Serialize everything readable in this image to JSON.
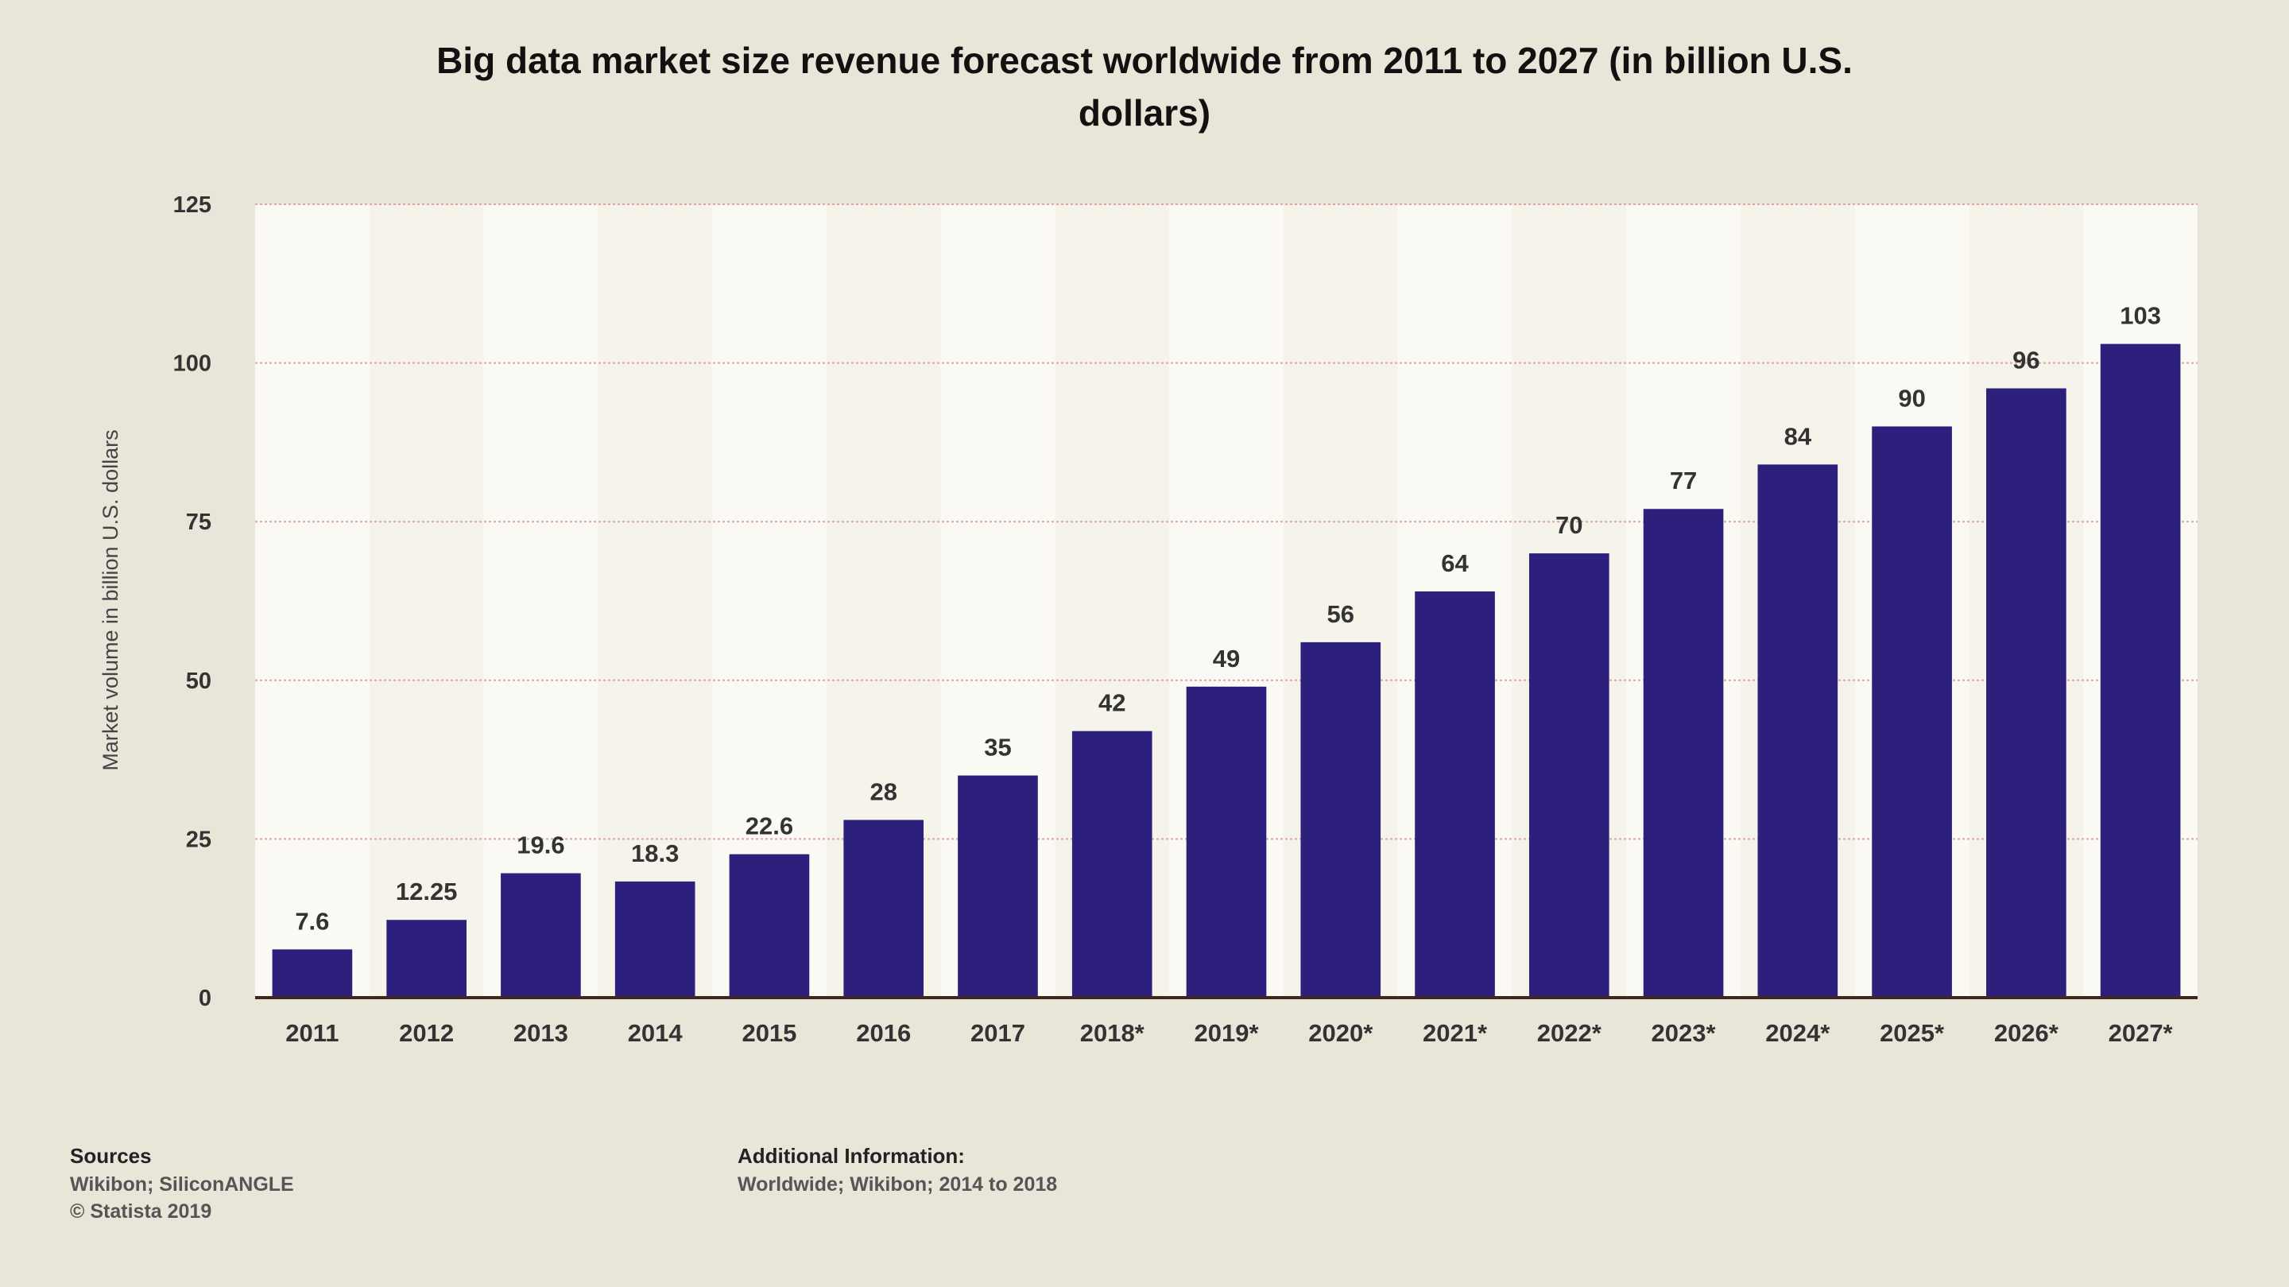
{
  "chart_data": {
    "type": "bar",
    "title": "Big data market size revenue forecast worldwide from 2011 to 2027 (in billion U.S. dollars)",
    "title_lines": [
      "Big data market size revenue forecast worldwide from 2011 to 2027 (in billion U.S.",
      "dollars)"
    ],
    "xlabel": "",
    "ylabel": "Market volume in billion U.S. dollars",
    "categories": [
      "2011",
      "2012",
      "2013",
      "2014",
      "2015",
      "2016",
      "2017",
      "2018*",
      "2019*",
      "2020*",
      "2021*",
      "2022*",
      "2023*",
      "2024*",
      "2025*",
      "2026*",
      "2027*"
    ],
    "values": [
      7.6,
      12.25,
      19.6,
      18.3,
      22.6,
      28,
      35,
      42,
      49,
      56,
      64,
      70,
      77,
      84,
      90,
      96,
      103
    ],
    "data_labels": [
      "7.6",
      "12.25",
      "19.6",
      "18.3",
      "22.6",
      "28",
      "35",
      "42",
      "49",
      "56",
      "64",
      "70",
      "77",
      "84",
      "90",
      "96",
      "103"
    ],
    "ylim": [
      0,
      125
    ],
    "yticks": [
      0,
      25,
      50,
      75,
      100,
      125
    ],
    "grid": true,
    "legend": "none",
    "bar_color": "#2d1f7c"
  },
  "footer": {
    "sources_heading": "Sources",
    "sources": "Wikibon; SiliconANGLE",
    "copyright": "© Statista 2019",
    "additional_heading": "Additional Information:",
    "additional": "Worldwide; Wikibon; 2014 to 2018"
  }
}
